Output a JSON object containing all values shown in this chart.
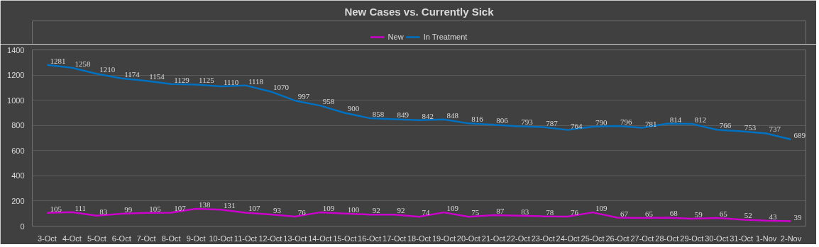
{
  "chart_data": {
    "type": "line",
    "title": "New Cases vs. Currently Sick",
    "categories": [
      "3-Oct",
      "4-Oct",
      "5-Oct",
      "6-Oct",
      "7-Oct",
      "8-Oct",
      "9-Oct",
      "10-Oct",
      "11-Oct",
      "12-Oct",
      "13-Oct",
      "14-Oct",
      "15-Oct",
      "16-Oct",
      "17-Oct",
      "18-Oct",
      "19-Oct",
      "20-Oct",
      "21-Oct",
      "22-Oct",
      "23-Oct",
      "24-Oct",
      "25-Oct",
      "26-Oct",
      "27-Oct",
      "28-Oct",
      "29-Oct",
      "30-Oct",
      "31-Oct",
      "1-Nov",
      "2-Nov"
    ],
    "series": [
      {
        "name": "New",
        "color": "#cc00cc",
        "values": [
          105,
          111,
          83,
          99,
          105,
          107,
          138,
          131,
          107,
          93,
          76,
          109,
          100,
          92,
          92,
          74,
          109,
          75,
          87,
          83,
          78,
          76,
          109,
          67,
          65,
          68,
          59,
          65,
          52,
          43,
          39
        ]
      },
      {
        "name": "In Treatment",
        "color": "#0070c0",
        "values": [
          1281,
          1258,
          1210,
          1174,
          1154,
          1129,
          1125,
          1110,
          1118,
          1070,
          997,
          958,
          900,
          858,
          849,
          842,
          848,
          816,
          806,
          793,
          787,
          764,
          790,
          796,
          781,
          814,
          812,
          766,
          753,
          737,
          689
        ]
      }
    ],
    "ylim": [
      0,
      1400
    ],
    "yticks": [
      0,
      200,
      400,
      600,
      800,
      1000,
      1200,
      1400
    ],
    "grid": "y",
    "legend": "top",
    "data_labels": true,
    "marker": "none",
    "line_style": "solid"
  }
}
